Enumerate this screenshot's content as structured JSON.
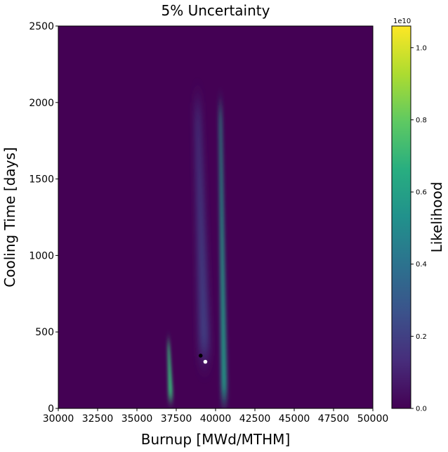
{
  "chart_data": {
    "type": "heatmap",
    "title": "5% Uncertainty",
    "xlabel": "Burnup [MWd/MTHM]",
    "ylabel": "Cooling Time [days]",
    "xlim": [
      30000,
      50000
    ],
    "ylim": [
      0,
      2500
    ],
    "xticks": [
      "30000",
      "32500",
      "35000",
      "37500",
      "40000",
      "42500",
      "45000",
      "47500",
      "50000"
    ],
    "yticks": [
      "0",
      "500",
      "1000",
      "1500",
      "2000",
      "2500"
    ],
    "colorbar": {
      "label": "Likelihood",
      "exponent": "1e10",
      "range": [
        0.0,
        1.06
      ],
      "ticks": [
        "0.0",
        "0.2",
        "0.4",
        "0.6",
        "0.8",
        "1.0"
      ],
      "colormap": "viridis"
    },
    "regions": [
      {
        "burnup_start": 39300,
        "burnup_end": 38850,
        "cooling_start": 340,
        "cooling_end": 2000,
        "peak_likelihood": 0.22
      },
      {
        "burnup_start": 40550,
        "burnup_end": 40300,
        "cooling_start": 60,
        "cooling_end": 1980,
        "peak_likelihood": 0.58
      },
      {
        "burnup_start": 37150,
        "burnup_end": 37000,
        "cooling_start": 60,
        "cooling_end": 440,
        "peak_likelihood": 0.7
      }
    ],
    "markers": [
      {
        "color": "#000000",
        "burnup": 39050,
        "cooling": 345
      },
      {
        "color": "#ffffff",
        "burnup": 39350,
        "cooling": 305
      }
    ],
    "background_color": "#440154"
  }
}
